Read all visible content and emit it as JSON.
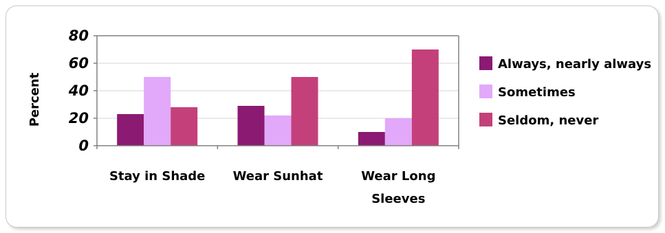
{
  "chart_data": {
    "type": "bar",
    "ylabel": "Percent",
    "ylim": [
      0,
      80
    ],
    "yticks": [
      0,
      20,
      40,
      60,
      80
    ],
    "grid": true,
    "legend_position": "right",
    "categories": [
      [
        "Stay in Shade"
      ],
      [
        "Wear Sunhat"
      ],
      [
        "Wear Long",
        "Sleeves"
      ]
    ],
    "series": [
      {
        "name": "Always, nearly always",
        "color": "#8B1A73",
        "values": [
          23,
          29,
          10
        ]
      },
      {
        "name": "Sometimes",
        "color": "#E2A8FA",
        "values": [
          50,
          22,
          20
        ]
      },
      {
        "name": "Seldom, never",
        "color": "#C4407A",
        "values": [
          28,
          50,
          70
        ]
      }
    ]
  }
}
